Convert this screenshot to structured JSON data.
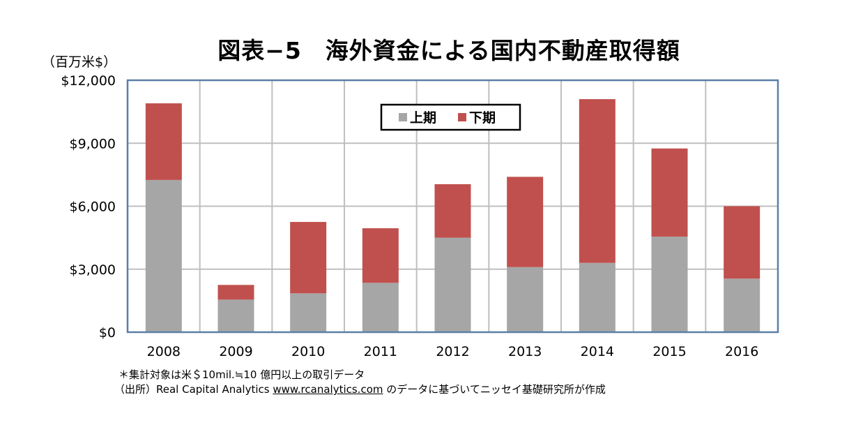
{
  "title": "図表−5　海外資金による国内不動産取得額",
  "unit_label": "（百万米$）",
  "notes": {
    "line1": "＊集計対象は米＄10mil.≒10 億円以上の取引データ",
    "line2_prefix": "（出所）Real Capital Analytics ",
    "line2_link": "www.rcanalytics.com",
    "line2_suffix": " のデータに基づいてニッセイ基礎研究所が作成"
  },
  "chart_data": {
    "type": "bar",
    "stacked": true,
    "categories": [
      "2008",
      "2009",
      "2010",
      "2011",
      "2012",
      "2013",
      "2014",
      "2015",
      "2016"
    ],
    "series": [
      {
        "name": "上期",
        "color": "#a6a6a6",
        "values": [
          7250,
          1550,
          1850,
          2350,
          4500,
          3100,
          3300,
          4550,
          2550
        ]
      },
      {
        "name": "下期",
        "color": "#c0504d",
        "values": [
          3650,
          700,
          3400,
          2600,
          2550,
          4300,
          7800,
          4200,
          3450
        ]
      }
    ],
    "y_ticks": [
      "$0",
      "$3,000",
      "$6,000",
      "$9,000",
      "$12,000"
    ],
    "ylim": [
      0,
      12000
    ],
    "grid": true,
    "legend_position": "top-center"
  }
}
